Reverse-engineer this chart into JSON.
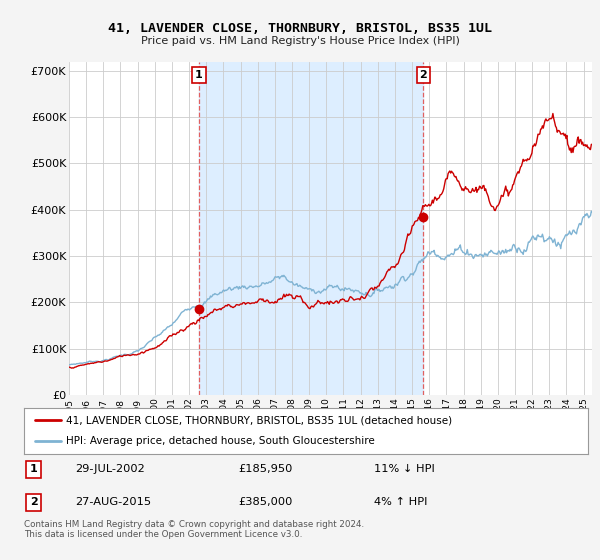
{
  "title": "41, LAVENDER CLOSE, THORNBURY, BRISTOL, BS35 1UL",
  "subtitle": "Price paid vs. HM Land Registry's House Price Index (HPI)",
  "legend_line1": "41, LAVENDER CLOSE, THORNBURY, BRISTOL, BS35 1UL (detached house)",
  "legend_line2": "HPI: Average price, detached house, South Gloucestershire",
  "footnote": "Contains HM Land Registry data © Crown copyright and database right 2024.\nThis data is licensed under the Open Government Licence v3.0.",
  "sale1_date": "29-JUL-2002",
  "sale1_price": "£185,950",
  "sale1_hpi": "11% ↓ HPI",
  "sale2_date": "27-AUG-2015",
  "sale2_price": "£385,000",
  "sale2_hpi": "4% ↑ HPI",
  "sale1_x": 2002.57,
  "sale2_x": 2015.65,
  "sale1_y": 185950,
  "sale2_y": 385000,
  "fig_bg": "#f4f4f4",
  "plot_bg": "#ffffff",
  "shade_color": "#ddeeff",
  "red_color": "#cc0000",
  "blue_color": "#7fb3d3",
  "grid_color": "#cccccc",
  "vline_color": "#e06060",
  "ylim": [
    0,
    720000
  ],
  "yticks": [
    0,
    100000,
    200000,
    300000,
    400000,
    500000,
    600000,
    700000
  ],
  "xmin": 1995,
  "xmax": 2025.5
}
